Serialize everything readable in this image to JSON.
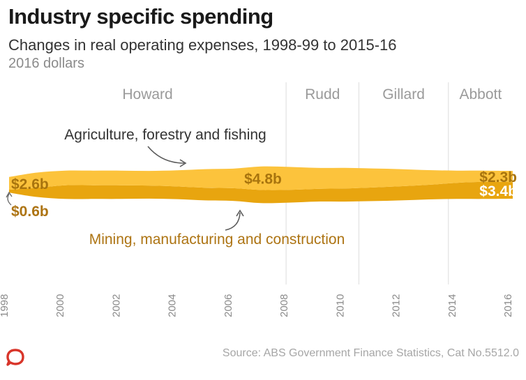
{
  "header": {
    "title": "Industry specific spending",
    "subtitle": "Changes in real operating expenses, 1998-99 to 2015-16",
    "units": "2016 dollars"
  },
  "footer": {
    "source": "Source: ABS Government Finance Statistics, Cat No.5512.0",
    "logo_icon": "conversation-logo-icon"
  },
  "colors": {
    "agriculture": "#fcc33c",
    "mining": "#e8a50f",
    "mining_label": "#ad7413",
    "agri_label": "#a8740e",
    "label_light": "#ffffff",
    "logo": "#d8352a"
  },
  "chart_data": {
    "type": "area",
    "subtype": "stacked-streamgraph",
    "x_ticks": [
      "1998",
      "2000",
      "2002",
      "2004",
      "2006",
      "2008",
      "2010",
      "2012",
      "2014",
      "2016"
    ],
    "xlim": [
      1998,
      2016
    ],
    "eras": [
      {
        "name": "Howard",
        "start": 1998,
        "end": 2007.9
      },
      {
        "name": "Rudd",
        "start": 2007.9,
        "end": 2010.5
      },
      {
        "name": "Gillard",
        "start": 2010.5,
        "end": 2013.7
      },
      {
        "name": "Abbott",
        "start": 2013.7,
        "end": 2016
      }
    ],
    "era_dividers": [
      2007.9,
      2010.5,
      2013.7
    ],
    "series": [
      {
        "name": "Agriculture, forestry and fishing",
        "x": [
          1998,
          1999,
          2000,
          2001,
          2002,
          2003,
          2004,
          2005,
          2006,
          2007,
          2008,
          2009,
          2010,
          2011,
          2012,
          2013,
          2014,
          2015,
          2016
        ],
        "values": [
          2.6,
          3.1,
          3.0,
          3.0,
          3.0,
          3.0,
          3.3,
          3.8,
          4.0,
          4.8,
          4.7,
          4.3,
          4.2,
          3.9,
          3.5,
          3.0,
          2.5,
          2.3,
          2.3
        ]
      },
      {
        "name": "Mining, manufacturing and construction",
        "x": [
          1998,
          1999,
          2000,
          2001,
          2002,
          2003,
          2004,
          2005,
          2006,
          2007,
          2008,
          2009,
          2010,
          2011,
          2012,
          2013,
          2014,
          2015,
          2016
        ],
        "values": [
          0.6,
          1.9,
          2.8,
          2.8,
          2.8,
          2.7,
          2.6,
          2.6,
          2.6,
          2.7,
          2.6,
          2.6,
          2.7,
          2.8,
          2.9,
          3.0,
          3.3,
          3.5,
          3.4
        ]
      }
    ],
    "value_labels": [
      {
        "series": 0,
        "x": 1998,
        "text": "$2.6b"
      },
      {
        "series": 0,
        "x": 2007,
        "text": "$4.8b"
      },
      {
        "series": 0,
        "x": 2016,
        "text": "$2.3b"
      },
      {
        "series": 1,
        "x": 1998,
        "text": "$0.6b"
      },
      {
        "series": 1,
        "x": 2016,
        "text": "$3.4b"
      }
    ],
    "annotations": [
      {
        "series": 0,
        "text": "Agriculture, forestry and fishing"
      },
      {
        "series": 1,
        "text": "Mining, manufacturing and construction"
      }
    ]
  }
}
